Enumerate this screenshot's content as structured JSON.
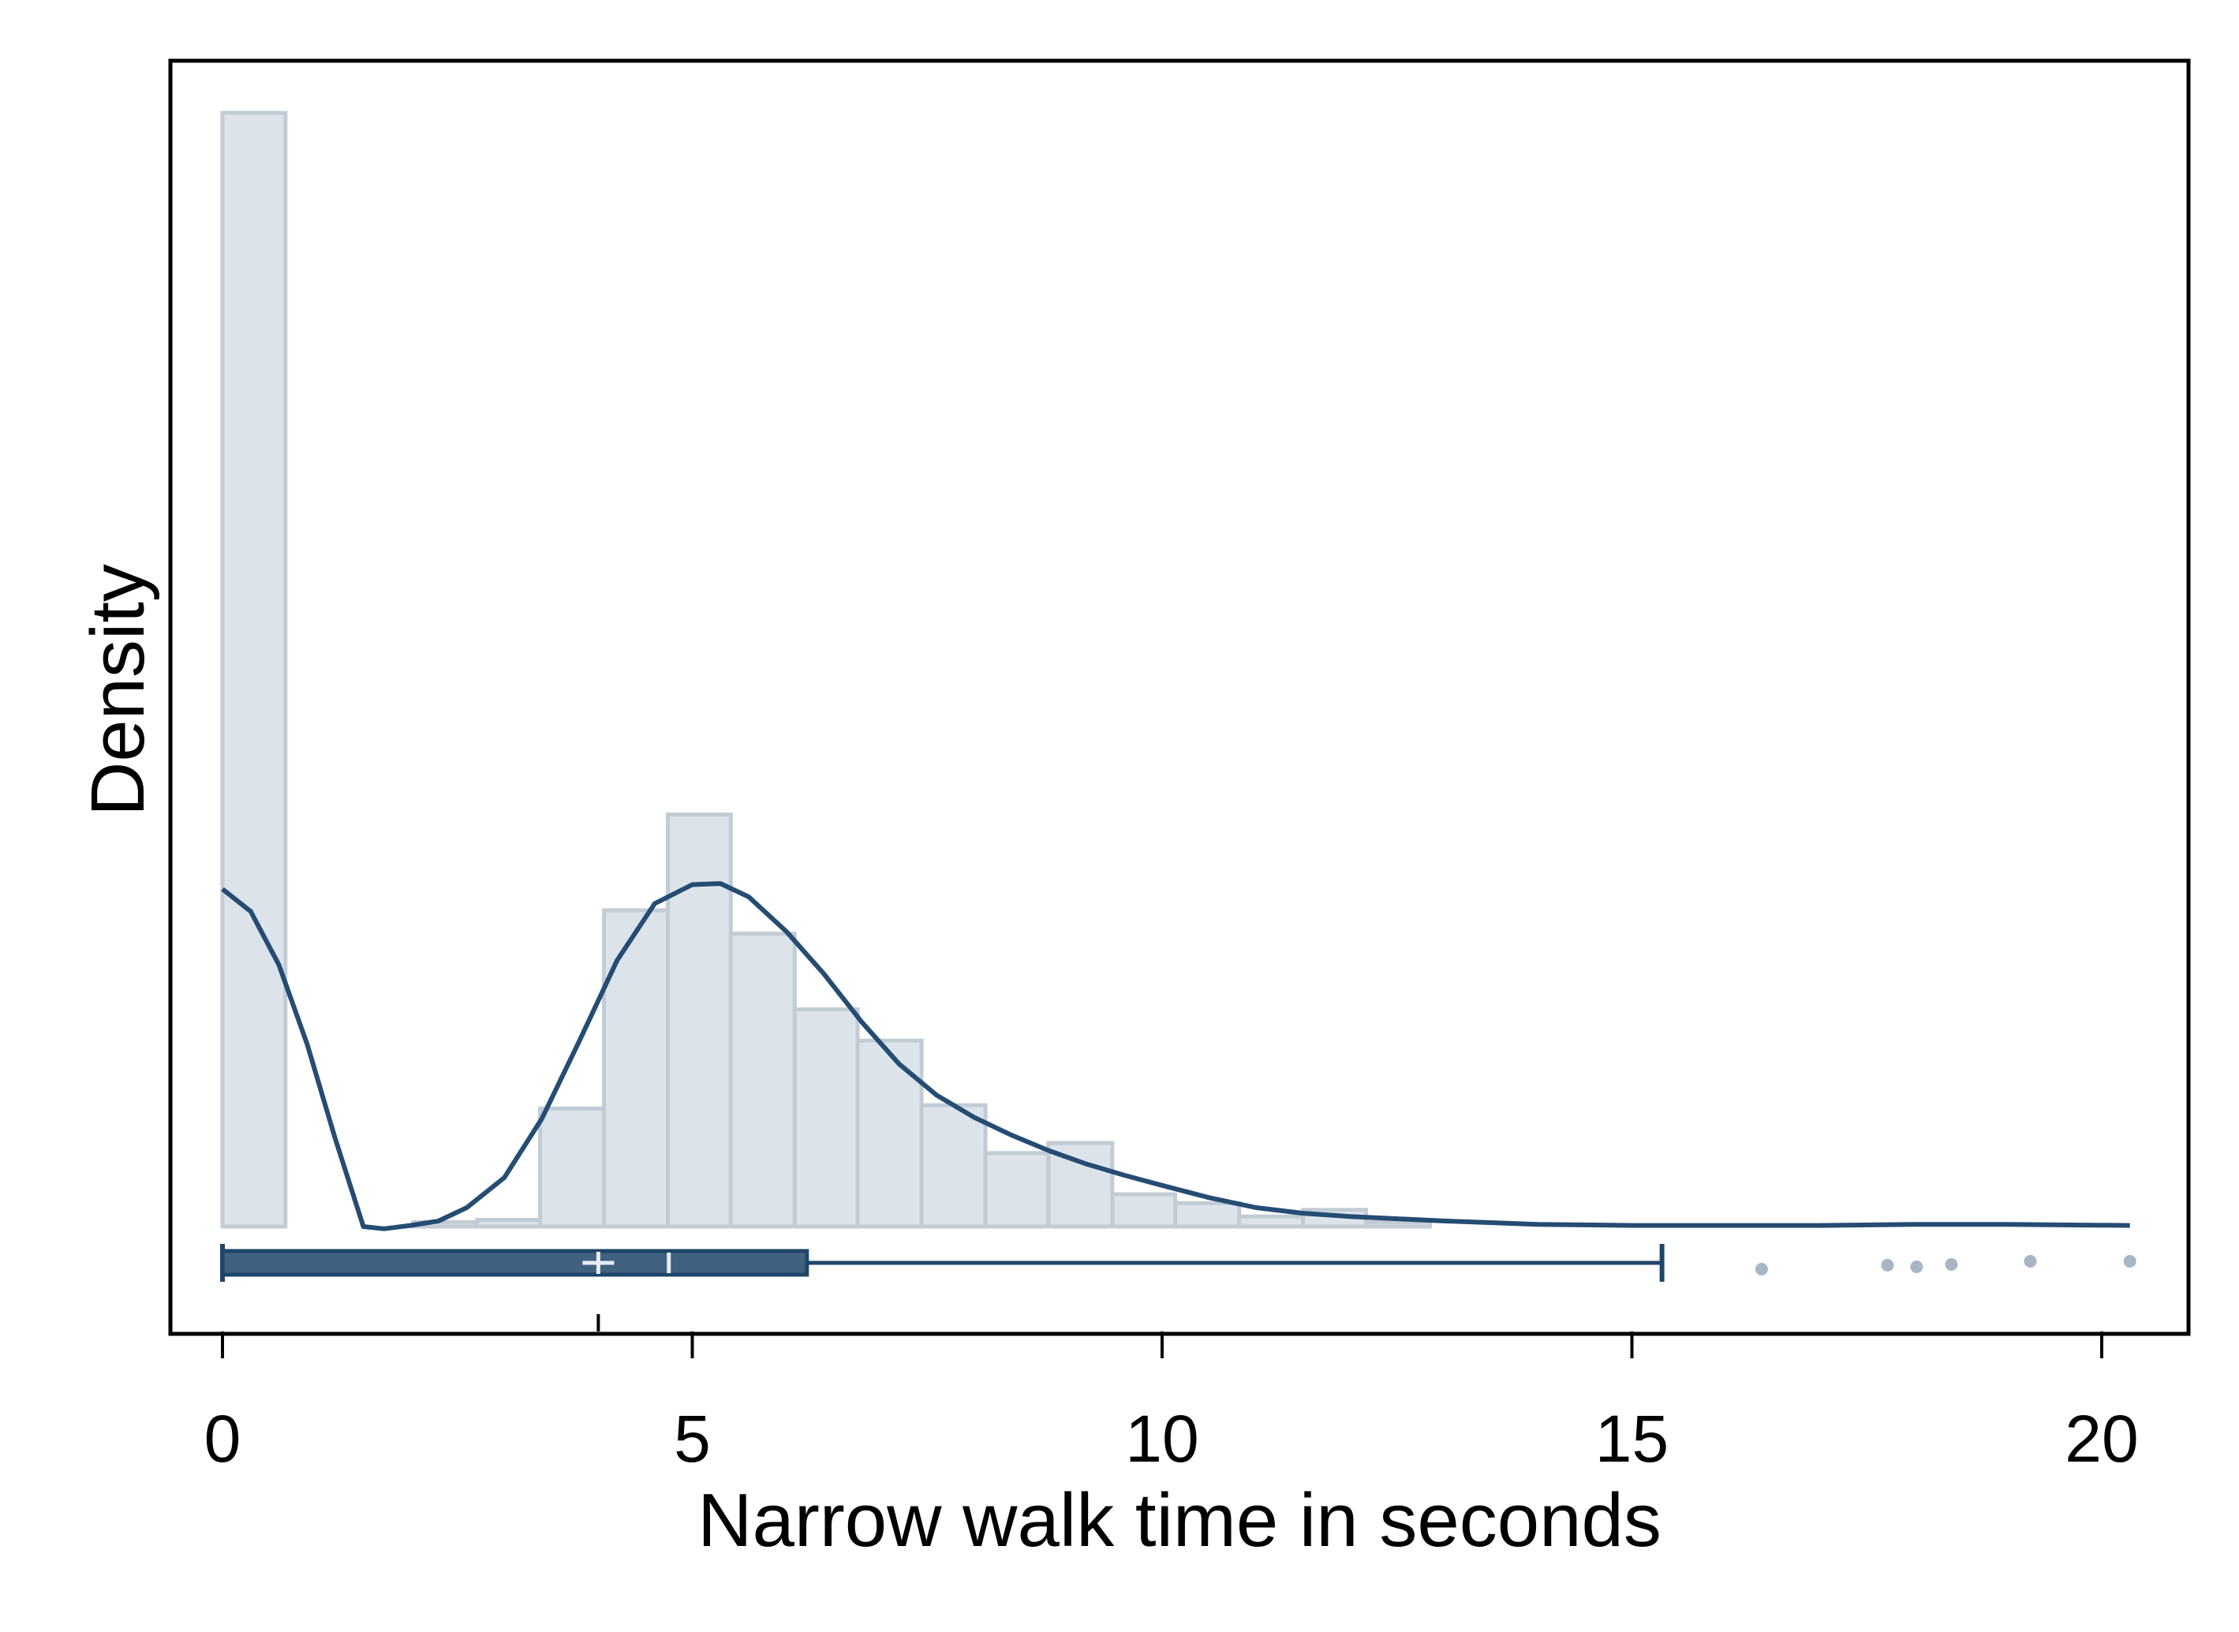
{
  "chart_data": {
    "type": "histogram",
    "xlabel": "Narrow walk time in seconds",
    "ylabel": "Density",
    "xlim": [
      -0.55,
      20.95
    ],
    "x_ticks": [
      0,
      5,
      10,
      15,
      20
    ],
    "x_tick_labels": [
      "0",
      "5",
      "10",
      "15",
      "20"
    ],
    "y_ticks_shown": false,
    "grid": false,
    "legend": "none",
    "density_scale": "relative (0-1, tallest bar = 1)",
    "colors": {
      "bar_fill": "#dce3ea",
      "bar_edge": "#c2ccd5",
      "curve": "#254c72",
      "box_fill": "#40617f",
      "box_edge": "#1f4668",
      "outlier": "#a6b6c5",
      "mean_marker": "#e6ecf2",
      "axis": "#000000"
    },
    "histogram": {
      "bin_width": 0.67,
      "bins": [
        {
          "x0": 0.0,
          "x1": 0.67,
          "density": 1.0
        },
        {
          "x0": 2.03,
          "x1": 2.71,
          "density": 0.004
        },
        {
          "x0": 2.71,
          "x1": 3.38,
          "density": 0.006
        },
        {
          "x0": 3.38,
          "x1": 4.06,
          "density": 0.106
        },
        {
          "x0": 4.06,
          "x1": 4.74,
          "density": 0.284
        },
        {
          "x0": 4.74,
          "x1": 5.41,
          "density": 0.37
        },
        {
          "x0": 5.41,
          "x1": 6.09,
          "density": 0.263
        },
        {
          "x0": 6.09,
          "x1": 6.76,
          "density": 0.195
        },
        {
          "x0": 6.76,
          "x1": 7.44,
          "density": 0.167
        },
        {
          "x0": 7.44,
          "x1": 8.12,
          "density": 0.109
        },
        {
          "x0": 8.12,
          "x1": 8.79,
          "density": 0.066
        },
        {
          "x0": 8.79,
          "x1": 9.47,
          "density": 0.075
        },
        {
          "x0": 9.47,
          "x1": 10.14,
          "density": 0.029
        },
        {
          "x0": 10.14,
          "x1": 10.82,
          "density": 0.021
        },
        {
          "x0": 10.82,
          "x1": 11.5,
          "density": 0.009
        },
        {
          "x0": 11.5,
          "x1": 12.17,
          "density": 0.015
        },
        {
          "x0": 12.17,
          "x1": 12.85,
          "density": 0.004
        }
      ]
    },
    "density_curve": {
      "x": [
        0,
        0.3,
        0.6,
        0.9,
        1.2,
        1.5,
        1.72,
        2.0,
        2.3,
        2.6,
        3.0,
        3.4,
        3.8,
        4.2,
        4.6,
        5.0,
        5.3,
        5.6,
        6.0,
        6.4,
        6.8,
        7.2,
        7.6,
        8.0,
        8.4,
        8.8,
        9.2,
        9.6,
        10.0,
        10.5,
        11.0,
        11.5,
        12.0,
        12.5,
        13.0,
        14.0,
        15.0,
        16.0,
        17.0,
        18.0,
        19.0,
        20.3
      ],
      "y": [
        0.303,
        0.283,
        0.235,
        0.164,
        0.079,
        0.0,
        -0.002,
        0.001,
        0.005,
        0.017,
        0.044,
        0.097,
        0.167,
        0.239,
        0.29,
        0.307,
        0.308,
        0.296,
        0.265,
        0.227,
        0.184,
        0.146,
        0.118,
        0.098,
        0.082,
        0.068,
        0.056,
        0.046,
        0.037,
        0.026,
        0.017,
        0.012,
        0.009,
        0.007,
        0.005,
        0.002,
        0.001,
        0.001,
        0.001,
        0.002,
        0.002,
        0.001
      ]
    },
    "box_plot": {
      "min": 0,
      "q1": 0,
      "median": 4.75,
      "q3": 6.22,
      "whisker_high": 15.32,
      "mean": 4.0,
      "outliers": [
        16.38,
        17.72,
        18.03,
        18.4,
        19.24,
        20.3
      ]
    }
  }
}
